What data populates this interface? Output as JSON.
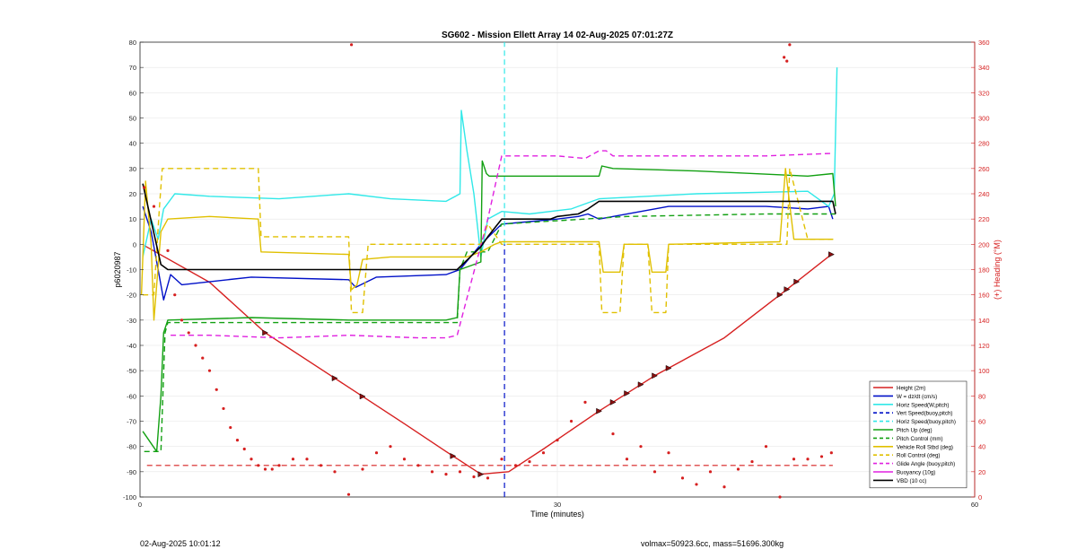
{
  "footer": {
    "timestamp": "02-Aug-2025 10:01:12",
    "stats": "volmax=50923.6cc, mass=51696.300kg"
  },
  "chart_data": {
    "type": "line",
    "title": "SG602 - Mission Ellett Array 14 02-Aug-2025 07:01:27Z",
    "xlabel": "Time (minutes)",
    "ylabel": "p6020987",
    "y2label": "(+) Heading (°M)",
    "xlim": [
      0,
      60
    ],
    "ylim": [
      -100,
      80
    ],
    "y2lim": [
      0,
      360
    ],
    "x_ticks": [
      0,
      30,
      60
    ],
    "y_ticks": [
      -100,
      -90,
      -80,
      -70,
      -60,
      -50,
      -40,
      -30,
      -20,
      -10,
      0,
      10,
      20,
      30,
      40,
      50,
      60,
      70,
      80
    ],
    "y2_ticks": [
      0,
      20,
      40,
      60,
      80,
      100,
      120,
      140,
      160,
      180,
      200,
      220,
      240,
      260,
      280,
      300,
      320,
      340,
      360
    ],
    "grid": true,
    "legend_position": "bottom-right",
    "colors": {
      "red": "#d62020",
      "blue": "#0010c8",
      "cyan": "#30e8e8",
      "green": "#12a012",
      "yellow": "#e0c000",
      "magenta": "#e020e0",
      "black": "#000000"
    },
    "vline_x": 26.2,
    "series": [
      {
        "name": "Height (2m)",
        "color": "red",
        "dash": "solid",
        "width": 1.4,
        "x": [
          0.3,
          5,
          9,
          14,
          19,
          22,
          24.5,
          26.5,
          29,
          33,
          37,
          42,
          46,
          49.7
        ],
        "y": [
          -0.5,
          -15,
          -35,
          -53,
          -71,
          -82,
          -91,
          -90,
          -81,
          -66,
          -52,
          -37,
          -20,
          -4
        ]
      },
      {
        "name": "W = dz/dt (cm/s)",
        "color": "blue",
        "dash": "solid",
        "width": 1.4,
        "x": [
          0.2,
          0.8,
          1.3,
          1.7,
          2.2,
          3,
          8,
          15,
          15.5,
          17,
          22,
          23,
          24.5,
          26,
          28,
          30,
          31.5,
          32.2,
          33,
          38,
          45,
          48,
          49.5,
          49.8
        ],
        "y": [
          15,
          5,
          -10,
          -22,
          -12,
          -16,
          -13,
          -14,
          -17,
          -13,
          -12,
          -10,
          0,
          8,
          9,
          10,
          11,
          12,
          10,
          15,
          15,
          14,
          15,
          10
        ]
      },
      {
        "name": "Horiz Speed(W,pitch)",
        "color": "cyan",
        "dash": "solid",
        "width": 1.4,
        "x": [
          0.2,
          0.8,
          1.3,
          1.7,
          2.5,
          5,
          10,
          15,
          18,
          22,
          23,
          23.1,
          23.5,
          24,
          24.5,
          25,
          26,
          28,
          31,
          32.5,
          33,
          40,
          48,
          49.5,
          49.9,
          50.1
        ],
        "y": [
          -5,
          10,
          2,
          14,
          20,
          19,
          18,
          20,
          18,
          17,
          20,
          53,
          37,
          20,
          -5,
          10,
          13,
          12,
          14,
          17,
          18,
          20,
          21,
          15,
          20,
          70
        ]
      },
      {
        "name": "Vert Speed(buoy,pitch)",
        "color": "blue",
        "dash": "dash",
        "width": 1.2,
        "x": [
          26.2,
          26.2
        ],
        "y": [
          -100,
          0
        ]
      },
      {
        "name": "Horiz Speed(buoy,pitch)",
        "color": "cyan",
        "dash": "dash",
        "width": 1.2,
        "x": [
          26.2,
          26.2
        ],
        "y": [
          0,
          80
        ]
      },
      {
        "name": "Pitch Up (deg)",
        "color": "green",
        "dash": "solid",
        "width": 1.4,
        "x": [
          0.2,
          1.2,
          1.5,
          1.7,
          2,
          8,
          15,
          22,
          22.8,
          23,
          24.5,
          24.6,
          24.9,
          25.1,
          26,
          33,
          33.2,
          34,
          40,
          48,
          49.8,
          50
        ],
        "y": [
          -74,
          -82,
          -60,
          -35,
          -30,
          -29,
          -30,
          -30,
          -29,
          -10,
          -7,
          33,
          28,
          27,
          27,
          27,
          31,
          30,
          29,
          27,
          28,
          15
        ]
      },
      {
        "name": "Pitch Control (mm)",
        "color": "green",
        "dash": "dash",
        "width": 1.4,
        "x": [
          0.3,
          1.5,
          1.8,
          2,
          8,
          22.8,
          23,
          23.5,
          25,
          26,
          35,
          45,
          50
        ],
        "y": [
          -82,
          -82,
          -35,
          -31,
          -31,
          -31,
          -10,
          -3,
          -3,
          8,
          11,
          12,
          12
        ]
      },
      {
        "name": "Vehicle Roll Stbd (deg)",
        "color": "yellow",
        "dash": "solid",
        "width": 1.4,
        "x": [
          0.1,
          0.4,
          0.8,
          1,
          1.5,
          2,
          5,
          8.5,
          8.7,
          15,
          15.2,
          15.6,
          16,
          18,
          23,
          23.5,
          24.5,
          25.5,
          26,
          33,
          33.3,
          34.5,
          34.8,
          36.5,
          36.8,
          37.8,
          38,
          46,
          46.4,
          47,
          49.8
        ],
        "y": [
          -20,
          25,
          0,
          -30,
          5,
          10,
          11,
          10,
          -3,
          -4,
          -18,
          -16,
          -6,
          -5,
          -5,
          -5,
          -3,
          0,
          1,
          1,
          -11,
          -11,
          0,
          0,
          -11,
          -11,
          0,
          1,
          30,
          2,
          2
        ]
      },
      {
        "name": "Roll Control (deg)",
        "color": "yellow",
        "dash": "dash",
        "width": 1.4,
        "x": [
          0.2,
          1,
          1.4,
          1.6,
          2,
          8.5,
          8.7,
          15,
          15.2,
          15.5,
          16,
          16.4,
          24.5,
          25,
          26,
          33,
          33.2,
          34.5,
          34.8,
          36.5,
          36.8,
          37.8,
          38,
          46.5,
          46.7,
          48,
          50
        ],
        "y": [
          -20,
          -20,
          15,
          30,
          30,
          30,
          3,
          3,
          -27,
          -27,
          -27,
          0,
          0,
          8,
          0,
          0,
          -27,
          -27,
          0,
          0,
          -27,
          -27,
          0,
          0,
          30,
          2,
          2
        ]
      },
      {
        "name": "Glide Angle (buoy,pitch)",
        "color": "magenta",
        "dash": "dash",
        "width": 1.4,
        "x": [
          2.2,
          5,
          10,
          15,
          20,
          22,
          22.8,
          25,
          26,
          30,
          32,
          33,
          33.5,
          34,
          40,
          45,
          49.8
        ],
        "y": [
          -36,
          -36,
          -37,
          -36,
          -37,
          -37,
          -36,
          10,
          35,
          35,
          34,
          37,
          37,
          35,
          35,
          35,
          36
        ]
      },
      {
        "name": "Buoyancy (10g)",
        "color": "magenta",
        "dash": "solid",
        "width": 1.4,
        "x": [],
        "y": []
      },
      {
        "name": "VBD (10 cc)",
        "color": "black",
        "dash": "solid",
        "width": 1.6,
        "x": [
          0.2,
          1.5,
          2,
          22.8,
          24.5,
          25,
          26,
          28,
          29.5,
          30,
          31.5,
          32.2,
          33,
          40,
          49.8,
          50
        ],
        "y": [
          24,
          -8,
          -10,
          -10,
          -1,
          3,
          10,
          10,
          10,
          11,
          12,
          14,
          17,
          17,
          17,
          12
        ]
      }
    ],
    "hline": {
      "name": "",
      "color": "red",
      "dash": "dash",
      "y2": 25
    },
    "heading_points": {
      "name": "",
      "color": "red",
      "axis": "right",
      "x": [
        0.3,
        1,
        2,
        2.5,
        3,
        3.5,
        4,
        4.5,
        5,
        5.5,
        6,
        6.5,
        7,
        7.5,
        8,
        8.5,
        9,
        9.5,
        10,
        11,
        12,
        13,
        14,
        15,
        16,
        17,
        18,
        19,
        20,
        21,
        22,
        23,
        24,
        25,
        26,
        27,
        28,
        29,
        30,
        31,
        32,
        33,
        34,
        35,
        36,
        37,
        38,
        39,
        40,
        41,
        42,
        43,
        44,
        45,
        46,
        47,
        48,
        49,
        49.7
      ],
      "y": [
        245,
        230,
        195,
        160,
        140,
        130,
        120,
        110,
        100,
        85,
        70,
        55,
        45,
        38,
        30,
        25,
        22,
        22,
        25,
        30,
        30,
        25,
        20,
        2,
        22,
        35,
        40,
        30,
        25,
        20,
        18,
        20,
        16,
        15,
        30,
        25,
        28,
        35,
        45,
        60,
        75,
        68,
        50,
        30,
        40,
        20,
        35,
        15,
        10,
        20,
        8,
        22,
        28,
        40,
        0,
        30,
        30,
        32,
        35
      ]
    },
    "heading_points_top": {
      "x": [
        15.2,
        46.3,
        46.5,
        46.7
      ],
      "y2": [
        358,
        348,
        345,
        358
      ]
    },
    "markers": {
      "height_x": [
        9,
        14,
        16,
        22.5,
        24.5,
        33,
        34,
        35,
        36,
        37,
        38,
        46,
        46.5,
        47.2,
        49.7
      ],
      "y2": []
    }
  }
}
